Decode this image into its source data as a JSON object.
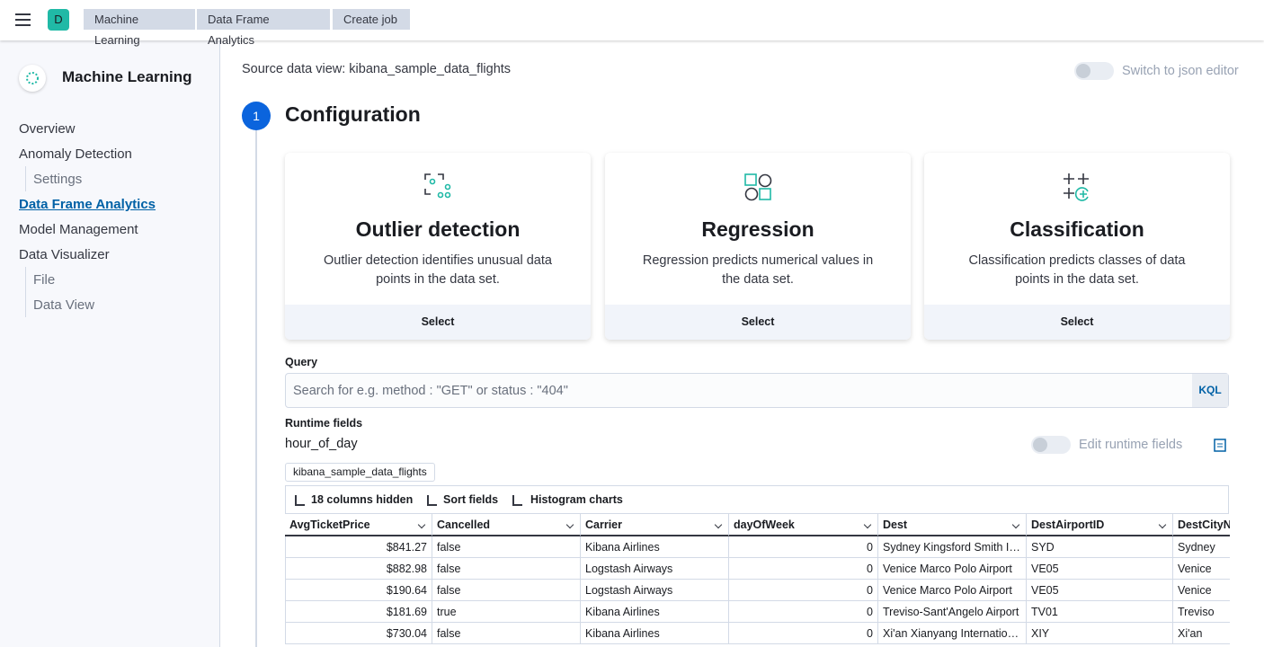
{
  "header": {
    "avatar": "D",
    "breadcrumbs": [
      "Machine Learning",
      "Data Frame Analytics",
      "Create job"
    ]
  },
  "sidebar": {
    "title": "Machine Learning",
    "items": [
      {
        "label": "Overview",
        "level": 0,
        "active": false
      },
      {
        "label": "Anomaly Detection",
        "level": 0,
        "active": false
      },
      {
        "label": "Settings",
        "level": 1,
        "active": false
      },
      {
        "label": "Data Frame Analytics",
        "level": 0,
        "active": true
      },
      {
        "label": "Model Management",
        "level": 0,
        "active": false
      },
      {
        "label": "Data Visualizer",
        "level": 0,
        "active": false
      },
      {
        "label": "File",
        "level": 1,
        "active": false
      },
      {
        "label": "Data View",
        "level": 1,
        "active": false
      }
    ]
  },
  "main": {
    "source": "Source data view: kibana_sample_data_flights",
    "json_switch": "Switch to json editor",
    "step": {
      "number": "1",
      "title": "Configuration"
    },
    "cards": [
      {
        "title": "Outlier detection",
        "description": "Outlier detection identifies unusual data points in the data set.",
        "button": "Select"
      },
      {
        "title": "Regression",
        "description": "Regression predicts numerical values in the data set.",
        "button": "Select"
      },
      {
        "title": "Classification",
        "description": "Classification predicts classes of data points in the data set.",
        "button": "Select"
      }
    ],
    "query": {
      "label": "Query",
      "placeholder": "Search for e.g. method : \"GET\" or status : \"404\"",
      "language": "KQL"
    },
    "runtime": {
      "label": "Runtime fields",
      "field": "hour_of_day",
      "toggle": "Edit runtime fields"
    },
    "badge": "kibana_sample_data_flights",
    "toolbar": [
      "18 columns hidden",
      "Sort fields",
      "Histogram charts"
    ],
    "table": {
      "columns": [
        "AvgTicketPrice",
        "Cancelled",
        "Carrier",
        "dayOfWeek",
        "Dest",
        "DestAirportID",
        "DestCityN"
      ],
      "rows": [
        [
          "$841.27",
          "false",
          "Kibana Airlines",
          0,
          "Sydney Kingsford Smith I…",
          "SYD",
          "Sydney"
        ],
        [
          "$882.98",
          "false",
          "Logstash Airways",
          0,
          "Venice Marco Polo Airport",
          "VE05",
          "Venice"
        ],
        [
          "$190.64",
          "false",
          "Logstash Airways",
          0,
          "Venice Marco Polo Airport",
          "VE05",
          "Venice"
        ],
        [
          "$181.69",
          "true",
          "Kibana Airlines",
          0,
          "Treviso-Sant'Angelo Airport",
          "TV01",
          "Treviso"
        ],
        [
          "$730.04",
          "false",
          "Kibana Airlines",
          0,
          "Xi'an Xianyang Internatio…",
          "XIY",
          "Xi'an"
        ]
      ]
    }
  }
}
